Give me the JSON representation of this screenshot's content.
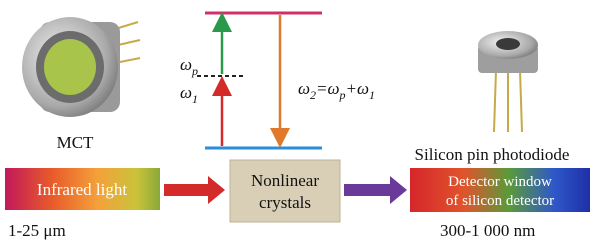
{
  "mct": {
    "label": "MCT"
  },
  "energy": {
    "omega_p": {
      "base": "ω",
      "sub": "p"
    },
    "omega_1": {
      "base": "ω",
      "sub": "1"
    },
    "equation": [
      {
        "base": "ω",
        "sub": "2"
      },
      {
        "base": "=ω",
        "sub": "p"
      },
      {
        "base": "+ω",
        "sub": "1"
      }
    ]
  },
  "photodiode": {
    "label": "Silicon pin photodiode"
  },
  "flow": {
    "source": "Infrared light",
    "crystal": [
      "Nonlinear",
      "crystals"
    ],
    "detector": [
      "Detector window",
      "of silicon detector"
    ]
  },
  "ranges": {
    "input": "1-25 μm",
    "output": "300-1 000 nm"
  }
}
